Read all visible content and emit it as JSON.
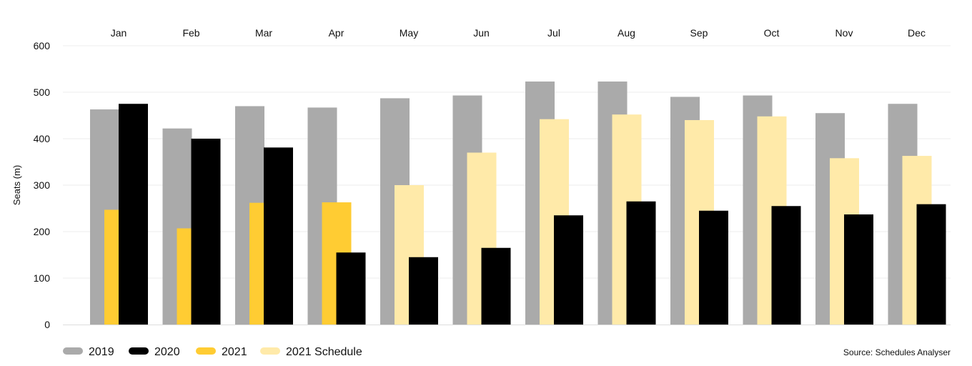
{
  "chart_data": {
    "type": "bar",
    "title": "",
    "xlabel": "",
    "ylabel": "Seats (m)",
    "ylim": [
      0,
      600
    ],
    "yticks": [
      0,
      100,
      200,
      300,
      400,
      500,
      600
    ],
    "grid": true,
    "legend_position": "bottom-left",
    "categories": [
      "Jan",
      "Feb",
      "Mar",
      "Apr",
      "May",
      "Jun",
      "Jul",
      "Aug",
      "Sep",
      "Oct",
      "Nov",
      "Dec"
    ],
    "series": [
      {
        "name": "2019",
        "color": "#aaaaaa",
        "values": [
          463,
          422,
          470,
          467,
          487,
          493,
          523,
          523,
          490,
          493,
          455,
          475
        ]
      },
      {
        "name": "2020",
        "color": "#000000",
        "values": [
          475,
          400,
          381,
          155,
          145,
          165,
          235,
          265,
          245,
          255,
          237,
          259
        ]
      },
      {
        "name": "2021",
        "color": "#ffcc33",
        "values": [
          247,
          207,
          262,
          263,
          null,
          null,
          null,
          null,
          null,
          null,
          null,
          null
        ]
      },
      {
        "name": "2021 Schedule",
        "color": "#ffeaa9",
        "values": [
          null,
          null,
          null,
          null,
          300,
          370,
          442,
          452,
          440,
          448,
          358,
          363
        ]
      }
    ],
    "source": "Source: Schedules Analyser"
  }
}
